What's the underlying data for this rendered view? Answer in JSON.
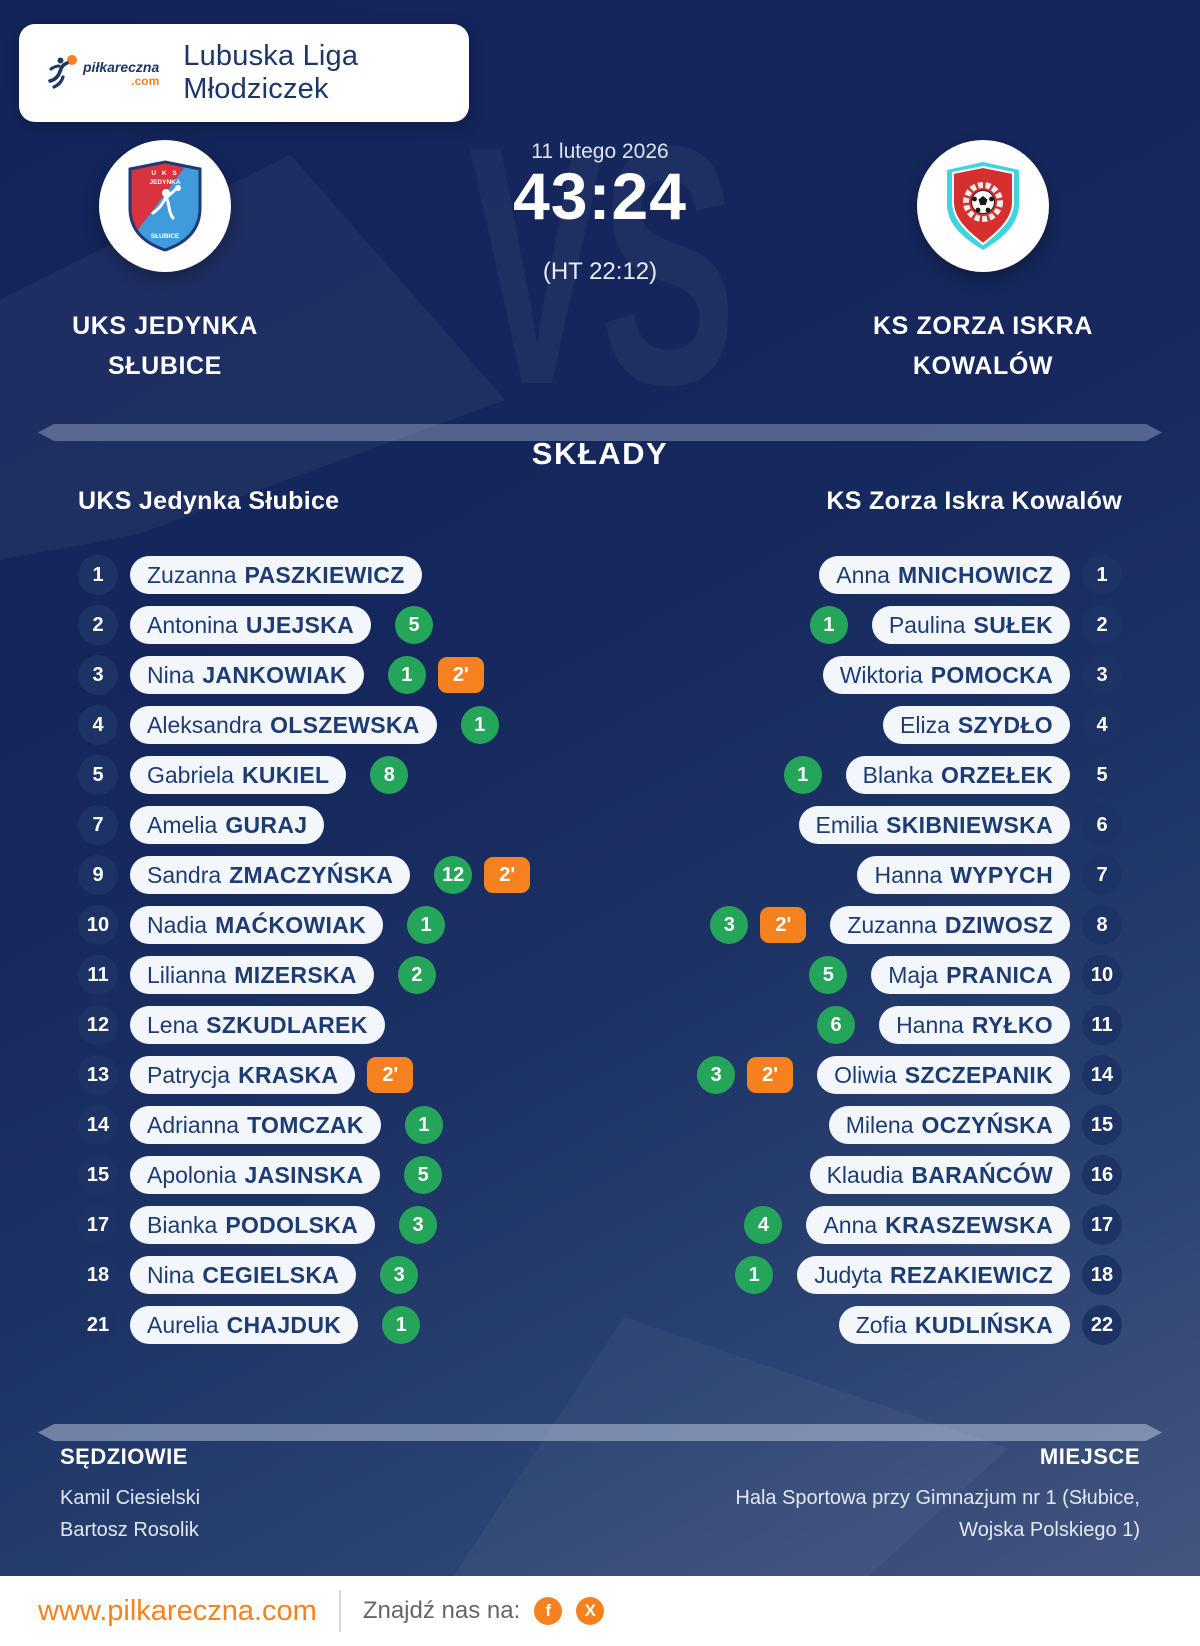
{
  "header": {
    "league": "Lubuska Liga Młodziczek",
    "logo": {
      "word": "piłkareczna",
      "tld": ".com"
    }
  },
  "match": {
    "date": "11 lutego 2026",
    "score": "43:24",
    "halftime": "(HT 22:12)",
    "vs": "VS",
    "home": {
      "line1": "UKS JEDYNKA",
      "line2": "SŁUBICE",
      "shield": {
        "top": "U K S",
        "mid": "JEDYNKA",
        "bottom": "SŁUBICE"
      }
    },
    "away": {
      "line1": "KS ZORZA ISKRA",
      "line2": "KOWALÓW"
    }
  },
  "lineups": {
    "title": "SKŁADY",
    "home_header": "UKS Jedynka Słubice",
    "away_header": "KS Zorza Iskra Kowalów",
    "home": [
      {
        "number": "1",
        "first": "Zuzanna",
        "last": "PASZKIEWICZ",
        "goals": "",
        "penalty": ""
      },
      {
        "number": "2",
        "first": "Antonina",
        "last": "UJEJSKA",
        "goals": "5",
        "penalty": ""
      },
      {
        "number": "3",
        "first": "Nina",
        "last": "JANKOWIAK",
        "goals": "1",
        "penalty": "2'"
      },
      {
        "number": "4",
        "first": "Aleksandra",
        "last": "OLSZEWSKA",
        "goals": "1",
        "penalty": ""
      },
      {
        "number": "5",
        "first": "Gabriela",
        "last": "KUKIEL",
        "goals": "8",
        "penalty": ""
      },
      {
        "number": "7",
        "first": "Amelia",
        "last": "GURAJ",
        "goals": "",
        "penalty": ""
      },
      {
        "number": "9",
        "first": "Sandra",
        "last": "ZMACZYŃSKA",
        "goals": "12",
        "penalty": "2'"
      },
      {
        "number": "10",
        "first": "Nadia",
        "last": "MAĆKOWIAK",
        "goals": "1",
        "penalty": ""
      },
      {
        "number": "11",
        "first": "Lilianna",
        "last": "MIZERSKA",
        "goals": "2",
        "penalty": ""
      },
      {
        "number": "12",
        "first": "Lena",
        "last": "SZKUDLAREK",
        "goals": "",
        "penalty": ""
      },
      {
        "number": "13",
        "first": "Patrycja",
        "last": "KRASKA",
        "goals": "",
        "penalty": "2'"
      },
      {
        "number": "14",
        "first": "Adrianna",
        "last": "TOMCZAK",
        "goals": "1",
        "penalty": ""
      },
      {
        "number": "15",
        "first": "Apolonia",
        "last": "JASINSKA",
        "goals": "5",
        "penalty": ""
      },
      {
        "number": "17",
        "first": "Bianka",
        "last": "PODOLSKA",
        "goals": "3",
        "penalty": ""
      },
      {
        "number": "18",
        "first": "Nina",
        "last": "CEGIELSKA",
        "goals": "3",
        "penalty": ""
      },
      {
        "number": "21",
        "first": "Aurelia",
        "last": "CHAJDUK",
        "goals": "1",
        "penalty": ""
      }
    ],
    "away": [
      {
        "number": "1",
        "first": "Anna",
        "last": "MNICHOWICZ",
        "goals": "",
        "penalty": ""
      },
      {
        "number": "2",
        "first": "Paulina",
        "last": "SUŁEK",
        "goals": "1",
        "penalty": ""
      },
      {
        "number": "3",
        "first": "Wiktoria",
        "last": "POMOCKA",
        "goals": "",
        "penalty": ""
      },
      {
        "number": "4",
        "first": "Eliza",
        "last": "SZYDŁO",
        "goals": "",
        "penalty": ""
      },
      {
        "number": "5",
        "first": "Blanka",
        "last": "ORZEŁEK",
        "goals": "1",
        "penalty": ""
      },
      {
        "number": "6",
        "first": "Emilia",
        "last": "SKIBNIEWSKA",
        "goals": "",
        "penalty": ""
      },
      {
        "number": "7",
        "first": "Hanna",
        "last": "WYPYCH",
        "goals": "",
        "penalty": ""
      },
      {
        "number": "8",
        "first": "Zuzanna",
        "last": "DZIWOSZ",
        "goals": "3",
        "penalty": "2'"
      },
      {
        "number": "10",
        "first": "Maja",
        "last": "PRANICA",
        "goals": "5",
        "penalty": ""
      },
      {
        "number": "11",
        "first": "Hanna",
        "last": "RYŁKO",
        "goals": "6",
        "penalty": ""
      },
      {
        "number": "14",
        "first": "Oliwia",
        "last": "SZCZEPANIK",
        "goals": "3",
        "penalty": "2'"
      },
      {
        "number": "15",
        "first": "Milena",
        "last": "OCZYŃSKA",
        "goals": "",
        "penalty": ""
      },
      {
        "number": "16",
        "first": "Klaudia",
        "last": "BARAŃCÓW",
        "goals": "",
        "penalty": ""
      },
      {
        "number": "17",
        "first": "Anna",
        "last": "KRASZEWSKA",
        "goals": "4",
        "penalty": ""
      },
      {
        "number": "18",
        "first": "Judyta",
        "last": "REZAKIEWICZ",
        "goals": "1",
        "penalty": ""
      },
      {
        "number": "22",
        "first": "Zofia",
        "last": "KUDLIŃSKA",
        "goals": "",
        "penalty": ""
      }
    ]
  },
  "info": {
    "referees_label": "SĘDZIOWIE",
    "referees": [
      "Kamil Ciesielski",
      "Bartosz Rosolik"
    ],
    "venue_label": "MIEJSCE",
    "venue": "Hala Sportowa przy Gimnazjum nr 1 (Słubice, Wojska Polskiego 1)"
  },
  "footer": {
    "website": "www.pilkareczna.com",
    "find_us": "Znajdź nas na:",
    "social": [
      "f",
      "X"
    ]
  },
  "colors": {
    "accent_orange": "#f5821f",
    "goal_green": "#25a55a",
    "navy_background": "#14255a",
    "pill_text_navy": "#1d3c74"
  }
}
